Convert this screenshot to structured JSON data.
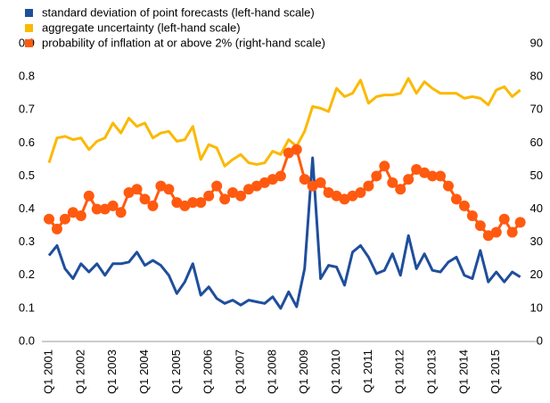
{
  "chart_data": {
    "type": "line",
    "categories": [
      "Q1 2001",
      null,
      null,
      null,
      "Q1 2002",
      null,
      null,
      null,
      "Q1 2003",
      null,
      null,
      null,
      "Q1 2004",
      null,
      null,
      null,
      "Q1 2005",
      null,
      null,
      null,
      "Q1 2006",
      null,
      null,
      null,
      "Q1 2007",
      null,
      null,
      null,
      "Q1 2008",
      null,
      null,
      null,
      "Q1 2009",
      null,
      null,
      null,
      "Q1 2010",
      null,
      null,
      null,
      "Q1 2011",
      null,
      null,
      null,
      "Q1 2012",
      null,
      null,
      null,
      "Q1 2013",
      null,
      null,
      null,
      "Q1 2014",
      null,
      null,
      null,
      "Q1 2015",
      null,
      null,
      null
    ],
    "series": [
      {
        "name": "standard deviation of point forecasts (left-hand scale)",
        "color": "#1f4e9c",
        "values": [
          0.26,
          0.29,
          0.22,
          0.19,
          0.235,
          0.21,
          0.235,
          0.2,
          0.235,
          0.235,
          0.24,
          0.27,
          0.23,
          0.245,
          0.23,
          0.2,
          0.145,
          0.18,
          0.235,
          0.14,
          0.165,
          0.13,
          0.115,
          0.125,
          0.11,
          0.125,
          0.12,
          0.115,
          0.135,
          0.1,
          0.15,
          0.105,
          0.22,
          0.555,
          0.19,
          0.23,
          0.225,
          0.17,
          0.27,
          0.29,
          0.255,
          0.205,
          0.215,
          0.265,
          0.2,
          0.32,
          0.22,
          0.265,
          0.215,
          0.21,
          0.24,
          0.255,
          0.2,
          0.19,
          0.275,
          0.18,
          0.21,
          0.18,
          0.21,
          0.195
        ]
      },
      {
        "name": "aggregate uncertainty (left-hand scale)",
        "color": "#fbb900",
        "values": [
          0.54,
          0.615,
          0.62,
          0.61,
          0.615,
          0.58,
          0.605,
          0.615,
          0.66,
          0.63,
          0.675,
          0.65,
          0.66,
          0.615,
          0.63,
          0.635,
          0.605,
          0.61,
          0.65,
          0.55,
          0.595,
          0.585,
          0.53,
          0.55,
          0.565,
          0.54,
          0.535,
          0.54,
          0.575,
          0.565,
          0.61,
          0.59,
          0.635,
          0.71,
          0.705,
          0.695,
          0.765,
          0.74,
          0.75,
          0.79,
          0.72,
          0.74,
          0.745,
          0.745,
          0.75,
          0.795,
          0.75,
          0.785,
          0.765,
          0.75,
          0.75,
          0.75,
          0.735,
          0.74,
          0.735,
          0.715,
          0.76,
          0.77,
          0.74,
          0.76
        ]
      },
      {
        "name": "probability of inflation at or above 2% (right-hand scale)",
        "color": "#ff5a0f",
        "axis": "y2",
        "markers": true,
        "values": [
          37,
          34,
          37,
          39,
          38,
          44,
          40,
          40,
          41,
          39,
          45,
          46,
          43,
          41,
          47,
          46,
          42,
          41,
          42,
          42,
          44,
          47,
          43,
          45,
          44,
          46,
          47,
          48,
          49,
          50,
          57,
          58,
          49,
          47,
          48,
          45,
          44,
          43,
          44,
          45,
          47,
          50,
          53,
          48,
          46,
          49,
          52,
          51,
          50,
          50,
          47,
          43,
          41,
          38,
          35,
          32,
          33,
          37,
          33,
          36
        ]
      }
    ],
    "ylim": [
      0,
      0.9
    ],
    "yticks": [
      {
        "value": 0,
        "label": "0.0"
      },
      0.1,
      0.2,
      0.3,
      0.4,
      0.5,
      0.6,
      0.7,
      0.8,
      0.9
    ],
    "y2lim": [
      0,
      90
    ],
    "y2ticks": [
      0,
      10,
      20,
      30,
      40,
      50,
      60,
      70,
      80,
      90
    ]
  }
}
